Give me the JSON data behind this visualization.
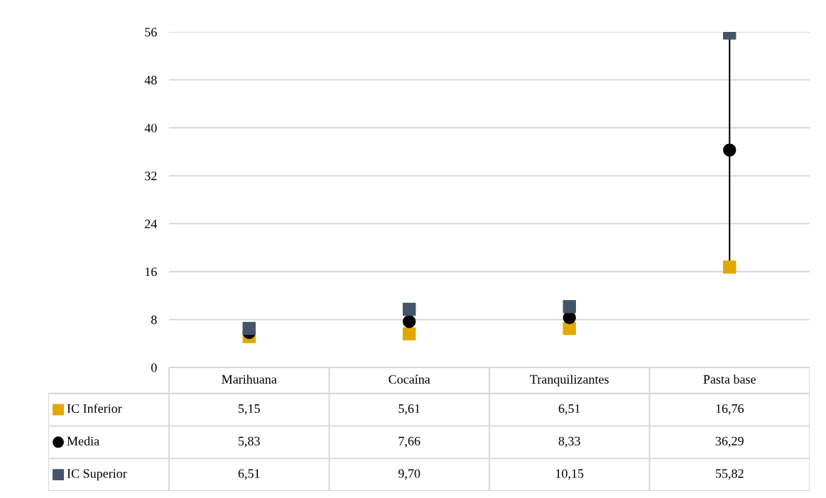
{
  "chart_data": {
    "type": "scatter",
    "categories": [
      "Marihuana",
      "Cocaína",
      "Tranquilizantes",
      "Pasta base"
    ],
    "series": [
      {
        "name": "IC Inferior",
        "color": "#e0a800",
        "marker": "square",
        "values": [
          5.15,
          5.61,
          6.51,
          16.76
        ],
        "value_labels": [
          "5,15",
          "5,61",
          "6,51",
          "16,76"
        ]
      },
      {
        "name": "Media",
        "color": "#000000",
        "marker": "circle",
        "values": [
          5.83,
          7.66,
          8.33,
          36.29
        ],
        "errors": [
          [
            0.7,
            0.7
          ],
          [
            2.0,
            2.0
          ],
          [
            1.8,
            1.8
          ],
          [
            19.5,
            19.5
          ]
        ],
        "value_labels": [
          "5,83",
          "7,66",
          "8,33",
          "36,29"
        ]
      },
      {
        "name": "IC Superior",
        "color": "#44546a",
        "marker": "square",
        "values": [
          6.51,
          9.7,
          10.15,
          55.82
        ],
        "value_labels": [
          "6,51",
          "9,70",
          "10,15",
          "55,82"
        ]
      }
    ],
    "ylim": [
      0,
      56
    ],
    "yticks": [
      0,
      8,
      16,
      24,
      32,
      40,
      48,
      56
    ],
    "grid": "y",
    "legend": "bottom left"
  }
}
